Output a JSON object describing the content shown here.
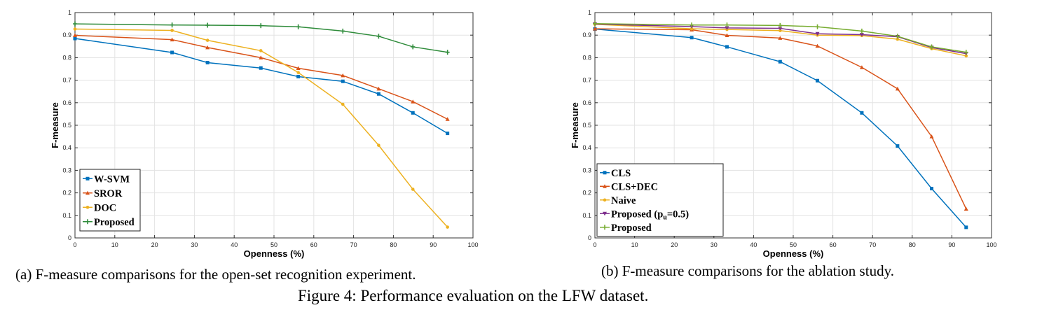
{
  "chart_data": [
    {
      "type": "line",
      "caption": "(a) F-measure comparisons for the open-set recognition experiment.",
      "xlabel": "Openness (%)",
      "ylabel": "F-measure",
      "xlim": [
        0,
        100
      ],
      "ylim": [
        0,
        1
      ],
      "xticks": [
        "0",
        "10",
        "20",
        "30",
        "40",
        "50",
        "60",
        "70",
        "80",
        "90",
        "100"
      ],
      "yticks": [
        "0",
        "0.1",
        "0.2",
        "0.3",
        "0.4",
        "0.5",
        "0.6",
        "0.7",
        "0.8",
        "0.9",
        "1"
      ],
      "grid": true,
      "legend": "bottom-left",
      "x": [
        0,
        24.4,
        33.3,
        46.7,
        56.1,
        67.3,
        76.3,
        84.9,
        93.6
      ],
      "series": [
        {
          "name": "W-SVM",
          "color": "#0072BD",
          "marker": "square",
          "values": [
            0.885,
            0.823,
            0.778,
            0.754,
            0.716,
            0.695,
            0.639,
            0.555,
            0.464
          ]
        },
        {
          "name": "SROR",
          "color": "#D95319",
          "marker": "triangle-up",
          "values": [
            0.899,
            0.88,
            0.845,
            0.8,
            0.753,
            0.721,
            0.662,
            0.605,
            0.527
          ]
        },
        {
          "name": "DOC",
          "color": "#EDB120",
          "marker": "dot",
          "values": [
            0.927,
            0.921,
            0.877,
            0.831,
            0.734,
            0.593,
            0.411,
            0.216,
            0.048
          ]
        },
        {
          "name": "Proposed",
          "color": "#2E8B3A",
          "marker": "plus",
          "values": [
            0.95,
            0.945,
            0.944,
            0.942,
            0.937,
            0.918,
            0.895,
            0.848,
            0.824
          ]
        }
      ]
    },
    {
      "type": "line",
      "caption": "(b) F-measure comparisons for the ablation study.",
      "xlabel": "Openness (%)",
      "ylabel": "F-measure",
      "xlim": [
        0,
        100
      ],
      "ylim": [
        0,
        1
      ],
      "xticks": [
        "0",
        "10",
        "20",
        "30",
        "40",
        "50",
        "60",
        "70",
        "80",
        "90",
        "100"
      ],
      "yticks": [
        "0",
        "0.1",
        "0.2",
        "0.3",
        "0.4",
        "0.5",
        "0.6",
        "0.7",
        "0.8",
        "0.9",
        "1"
      ],
      "grid": true,
      "legend": "bottom-left",
      "x": [
        0,
        24.4,
        33.3,
        46.7,
        56.1,
        67.3,
        76.3,
        84.9,
        93.6
      ],
      "series": [
        {
          "name": "CLS",
          "color": "#0072BD",
          "marker": "square",
          "values": [
            0.927,
            0.889,
            0.848,
            0.782,
            0.698,
            0.555,
            0.408,
            0.219,
            0.047
          ]
        },
        {
          "name": "CLS+DEC",
          "color": "#D95319",
          "marker": "triangle-up",
          "values": [
            0.928,
            0.924,
            0.899,
            0.887,
            0.852,
            0.757,
            0.662,
            0.45,
            0.129
          ]
        },
        {
          "name": "Naive",
          "color": "#EDB120",
          "marker": "dot",
          "values": [
            0.948,
            0.928,
            0.925,
            0.92,
            0.9,
            0.898,
            0.882,
            0.84,
            0.808
          ]
        },
        {
          "name": "Proposed (pu=0.5)",
          "color": "#7E2F8E",
          "marker": "triangle-down",
          "values": [
            0.949,
            0.938,
            0.932,
            0.93,
            0.906,
            0.902,
            0.893,
            0.845,
            0.818
          ]
        },
        {
          "name": "Proposed",
          "color": "#77AC30",
          "marker": "plus",
          "values": [
            0.951,
            0.945,
            0.945,
            0.943,
            0.937,
            0.918,
            0.895,
            0.848,
            0.824
          ]
        }
      ]
    }
  ],
  "figure_caption": "Figure 4: Performance evaluation on the LFW dataset."
}
